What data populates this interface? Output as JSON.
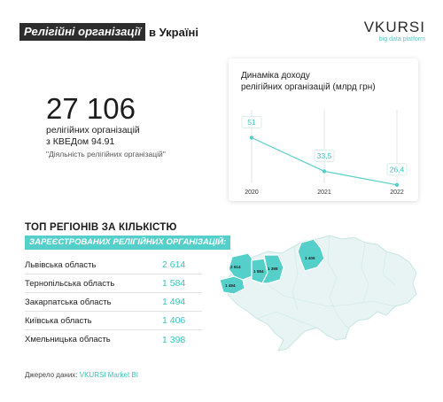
{
  "header": {
    "title_highlight": "Релігійні організації",
    "title_rest": "в Україні"
  },
  "logo": {
    "name": "VKURSI",
    "subtitle": "big data platform"
  },
  "stat": {
    "value": "27 106",
    "line1": "релігійних організацій",
    "line2": "з КВЕДом 94.91",
    "note": "\"Діяльність релігійних організацій\""
  },
  "colors": {
    "accent": "#55cfc9",
    "accent_text": "#3fc3bd",
    "dark": "#2d2d2d",
    "map_base": "#e7f4f3",
    "map_stroke": "#c9e6e3"
  },
  "chart_data": {
    "type": "line",
    "title_line1": "Динаміка доходу",
    "title_line2": "релігійних організацій (млрд грн)",
    "x": [
      "2020",
      "2021",
      "2022"
    ],
    "series": [
      {
        "values": [
          51,
          33.5,
          26.4
        ]
      }
    ],
    "data_labels": [
      "51",
      "33,5",
      "26,4"
    ],
    "grid": "vertical",
    "ylim": [
      0,
      60
    ]
  },
  "top_regions": {
    "title": "ТОП РЕГІОНІВ ЗА КІЛЬКІСТЮ",
    "subtitle": "ЗАРЕЄСТРОВАНИХ РЕЛІГІЙНИХ ОРГАНІЗАЦІЙ:",
    "items": [
      {
        "name": "Львівська область",
        "value": "2 614"
      },
      {
        "name": "Тернопільська область",
        "value": "1 584"
      },
      {
        "name": "Закарпатська область",
        "value": "1 494"
      },
      {
        "name": "Київська область",
        "value": "1 406"
      },
      {
        "name": "Хмельницька область",
        "value": "1 398"
      }
    ]
  },
  "map": {
    "labels": [
      "2 614",
      "1 584",
      "1 398",
      "1 494",
      "1 406"
    ]
  },
  "source": {
    "label": "Джерело даних:",
    "value": "VKURSI Market BI"
  }
}
